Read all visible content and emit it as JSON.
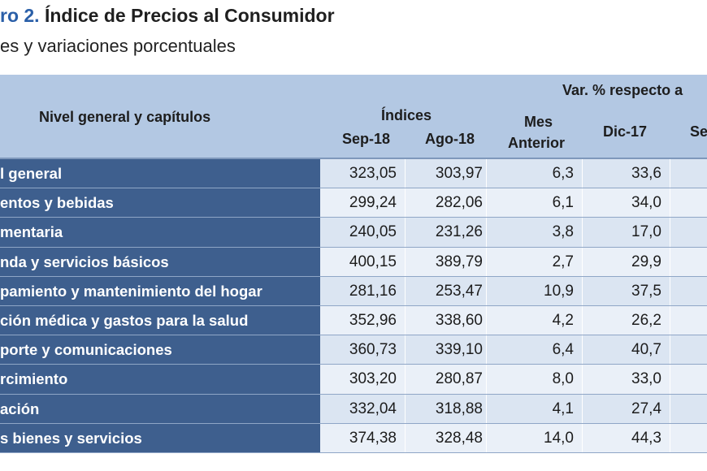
{
  "title": {
    "prefix": "ro 2.",
    "text": "Índice de Precios al Consumidor"
  },
  "subtitle": "es y variaciones porcentuales",
  "header": {
    "row_label": "Nivel general y capítulos",
    "indices": "Índices",
    "var_group": "Var. % respecto a",
    "sep18": "Sep-18",
    "ago18": "Ago-18",
    "mes": "Mes",
    "anterior": "Anterior",
    "dic17": "Dic-17",
    "partial": "Se"
  },
  "rows": [
    {
      "label": "l general",
      "sep18": "323,05",
      "ago18": "303,97",
      "mes_anterior": "6,3",
      "dic17": "33,6"
    },
    {
      "label": "entos y bebidas",
      "sep18": "299,24",
      "ago18": "282,06",
      "mes_anterior": "6,1",
      "dic17": "34,0"
    },
    {
      "label": "mentaria",
      "sep18": "240,05",
      "ago18": "231,26",
      "mes_anterior": "3,8",
      "dic17": "17,0"
    },
    {
      "label": "nda y servicios básicos",
      "sep18": "400,15",
      "ago18": "389,79",
      "mes_anterior": "2,7",
      "dic17": "29,9"
    },
    {
      "label": "pamiento y mantenimiento del hogar",
      "sep18": "281,16",
      "ago18": "253,47",
      "mes_anterior": "10,9",
      "dic17": "37,5"
    },
    {
      "label": "ción médica y gastos para la salud",
      "sep18": "352,96",
      "ago18": "338,60",
      "mes_anterior": "4,2",
      "dic17": "26,2"
    },
    {
      "label": "porte y comunicaciones",
      "sep18": "360,73",
      "ago18": "339,10",
      "mes_anterior": "6,4",
      "dic17": "40,7"
    },
    {
      "label": "rcimiento",
      "sep18": "303,20",
      "ago18": "280,87",
      "mes_anterior": "8,0",
      "dic17": "33,0"
    },
    {
      "label": "ación",
      "sep18": "332,04",
      "ago18": "318,88",
      "mes_anterior": "4,1",
      "dic17": "27,4"
    },
    {
      "label": "s bienes y servicios",
      "sep18": "374,38",
      "ago18": "328,48",
      "mes_anterior": "14,0",
      "dic17": "44,3"
    }
  ]
}
